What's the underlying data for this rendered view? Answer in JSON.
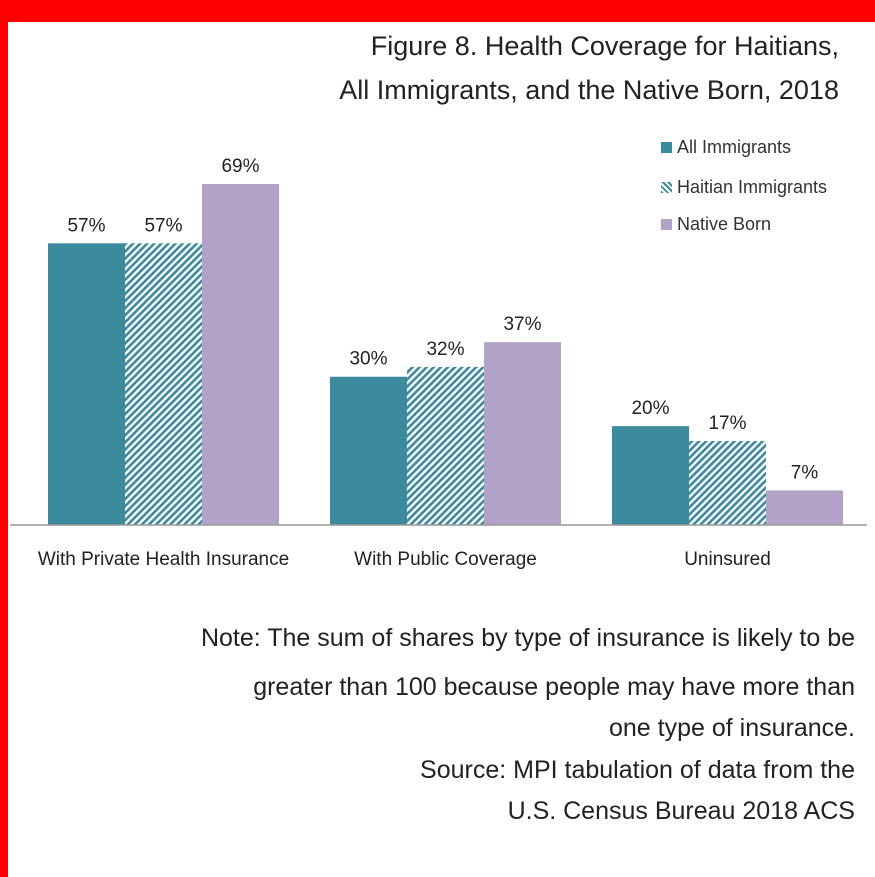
{
  "figure": {
    "title_line1": "Figure 8. Health Coverage for Haitians,",
    "title_line2": "All Immigrants, and the Native Born, 2018"
  },
  "legend": {
    "items": [
      {
        "label": "All Immigrants",
        "swatch": "solid"
      },
      {
        "label": "Haitian Immigrants",
        "swatch": "hatched"
      },
      {
        "label": "Native Born",
        "swatch": "solid"
      }
    ]
  },
  "notes": {
    "lines": [
      "Note: The sum of shares by type of insurance is likely to be",
      "greater than 100 because people may have more than",
      "one type of insurance.",
      "Source: MPI tabulation of data from the",
      "U.S. Census Bureau 2018 ACS"
    ]
  },
  "colors": {
    "frame": "#ff0000",
    "all_immigrants": "#3b8a9e",
    "haitian_immigrants": "#3b8a9e",
    "native_born": "#b3a2c8",
    "axis": "#999999",
    "text": "#222222"
  },
  "chart_data": {
    "type": "bar",
    "title": "Figure 8. Health Coverage for Haitians, All Immigrants, and the Native Born, 2018",
    "categories": [
      "With Private Health Insurance",
      "With Public Coverage",
      "Uninsured"
    ],
    "series": [
      {
        "name": "All Immigrants",
        "values": [
          57,
          30,
          20
        ],
        "labels": [
          "57%",
          "30%",
          "20%"
        ],
        "pattern": "solid"
      },
      {
        "name": "Haitian Immigrants",
        "values": [
          57,
          32,
          17
        ],
        "labels": [
          "57%",
          "32%",
          "17%"
        ],
        "pattern": "hatched"
      },
      {
        "name": "Native Born",
        "values": [
          69,
          37,
          7
        ],
        "labels": [
          "69%",
          "37%",
          "7%"
        ],
        "pattern": "solid"
      }
    ],
    "ylim": [
      0,
      69
    ],
    "xlabel": "",
    "ylabel": "",
    "grid": false,
    "legend": "top-right",
    "data_labels": true
  }
}
